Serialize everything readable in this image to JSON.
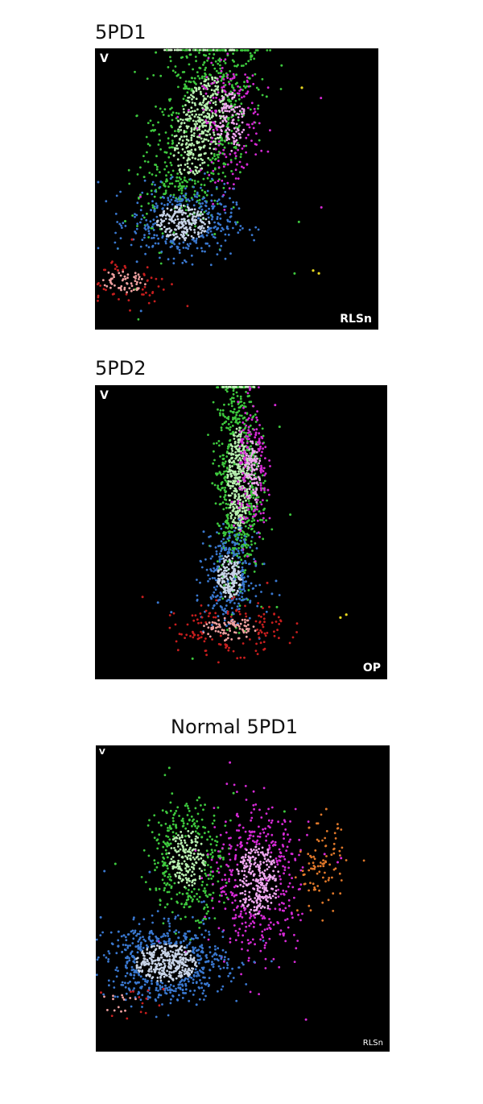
{
  "panels": [
    {
      "title": "5PD1",
      "ylabel": "V",
      "xlabel": "RLSn"
    },
    {
      "title": "5PD2",
      "ylabel": "V",
      "xlabel": "OP"
    },
    {
      "title": "Normal 5PD1",
      "ylabel": "V",
      "xlabel": "RLSn"
    }
  ],
  "colors": {
    "page_background": "#ffffff",
    "plot_background": "#000000",
    "green": "#3ec93e",
    "green_light": "#b8f0b0",
    "magenta": "#d62ad6",
    "magenta_light": "#f0a8f0",
    "blue": "#3a78d0",
    "blue_light": "#c8d4e8",
    "red": "#c81e1e",
    "red_light": "#f0a0a0",
    "orange": "#e0782a",
    "yellow": "#e8d820"
  },
  "chart_data": [
    {
      "type": "scatter",
      "title": "5PD1",
      "ylabel": "V",
      "xlabel": "RLSn",
      "axis_units": "arbitrary (0-100)",
      "xlim": [
        0,
        100
      ],
      "ylim": [
        0,
        100
      ],
      "grid": false,
      "legend": "none",
      "series": [
        {
          "color": "green",
          "approx_points": 900,
          "center": [
            37,
            72
          ],
          "spread": [
            8,
            17
          ],
          "core_center": [
            37,
            70
          ],
          "top_band": true,
          "note_slant": true
        },
        {
          "color": "magenta",
          "approx_points": 250,
          "center": [
            48,
            74
          ],
          "spread": [
            5,
            10
          ]
        },
        {
          "color": "blue",
          "approx_points": 500,
          "center": [
            31,
            38
          ],
          "spread": [
            9,
            6
          ]
        },
        {
          "color": "red",
          "approx_points": 120,
          "center": [
            10,
            17
          ],
          "spread": [
            8,
            4
          ]
        },
        {
          "color": "yellow",
          "approx_points": 3,
          "points": [
            [
              73,
              86
            ],
            [
              77,
              21
            ],
            [
              79,
              20
            ]
          ]
        }
      ]
    },
    {
      "type": "scatter",
      "title": "5PD2",
      "ylabel": "V",
      "xlabel": "OP",
      "axis_units": "arbitrary (0-100)",
      "xlim": [
        0,
        100
      ],
      "ylim": [
        0,
        100
      ],
      "grid": false,
      "legend": "none",
      "series": [
        {
          "color": "green",
          "approx_points": 850,
          "center": [
            49,
            68
          ],
          "spread": [
            3.5,
            17
          ],
          "top_band": true
        },
        {
          "color": "magenta",
          "approx_points": 250,
          "center": [
            54,
            70
          ],
          "spread": [
            2.5,
            11
          ]
        },
        {
          "color": "blue",
          "approx_points": 400,
          "center": [
            46,
            35
          ],
          "spread": [
            4,
            7
          ]
        },
        {
          "color": "red",
          "approx_points": 200,
          "center": [
            46,
            17
          ],
          "spread": [
            9,
            4
          ]
        },
        {
          "color": "yellow",
          "approx_points": 2,
          "points": [
            [
              84,
              21
            ],
            [
              86,
              22
            ]
          ]
        }
      ]
    },
    {
      "type": "scatter",
      "title": "Normal 5PD1",
      "ylabel": "V",
      "xlabel": "RLSn",
      "axis_units": "arbitrary (0-100)",
      "xlim": [
        0,
        100
      ],
      "ylim": [
        0,
        100
      ],
      "grid": false,
      "legend": "none",
      "series": [
        {
          "color": "green",
          "approx_points": 450,
          "center": [
            31,
            63
          ],
          "spread": [
            6,
            9
          ]
        },
        {
          "color": "magenta",
          "approx_points": 600,
          "center": [
            55,
            56
          ],
          "spread": [
            7,
            11
          ]
        },
        {
          "color": "orange",
          "approx_points": 90,
          "center": [
            77,
            60
          ],
          "spread": [
            4,
            7
          ]
        },
        {
          "color": "blue",
          "approx_points": 800,
          "center": [
            24,
            29
          ],
          "spread": [
            10,
            6
          ]
        },
        {
          "color": "red",
          "approx_points": 30,
          "center": [
            8,
            16
          ],
          "spread": [
            7,
            3
          ]
        }
      ]
    }
  ]
}
